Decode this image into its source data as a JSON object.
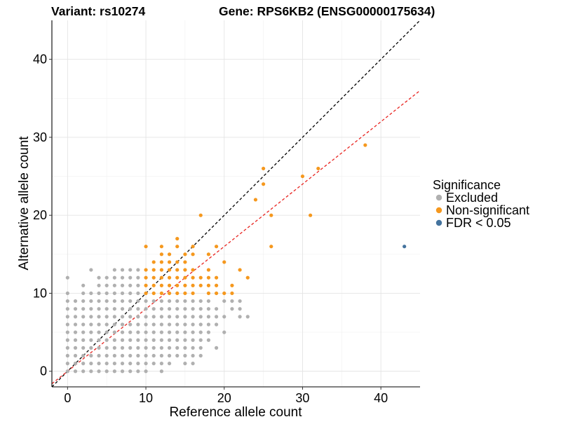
{
  "header": {
    "variant_title": "Variant: rs10274",
    "gene_title": "Gene: RPS6KB2 (ENSG00000175634)"
  },
  "chart_data": {
    "type": "scatter",
    "xlabel": "Reference allele count",
    "ylabel": "Alternative allele count",
    "xlim": [
      -2,
      45
    ],
    "ylim": [
      -2,
      45
    ],
    "x_ticks": [
      0,
      10,
      20,
      30,
      40
    ],
    "y_ticks": [
      0,
      10,
      20,
      30,
      40
    ],
    "grid": true,
    "legend": {
      "title": "Significance",
      "placement": "right",
      "entries": [
        {
          "label": "Excluded",
          "color": "#b0b0b0"
        },
        {
          "label": "Non-significant",
          "color": "#f5981e"
        },
        {
          "label": "FDR < 0.05",
          "color": "#44739e"
        }
      ]
    },
    "reference_lines": [
      {
        "slope": 1.0,
        "intercept": 0,
        "color": "#000000",
        "style": "dashed"
      },
      {
        "slope": 0.8,
        "intercept": 0,
        "color": "#e8231f",
        "style": "dashed"
      }
    ],
    "series": [
      {
        "name": "Excluded",
        "color": "#b0b0b0",
        "points": [
          [
            0,
            0
          ],
          [
            0,
            1
          ],
          [
            0,
            2
          ],
          [
            0,
            3
          ],
          [
            0,
            4
          ],
          [
            0,
            5
          ],
          [
            0,
            6
          ],
          [
            0,
            7
          ],
          [
            0,
            8
          ],
          [
            0,
            9
          ],
          [
            0,
            10
          ],
          [
            0,
            12
          ],
          [
            1,
            0
          ],
          [
            1,
            1
          ],
          [
            1,
            2
          ],
          [
            1,
            3
          ],
          [
            1,
            4
          ],
          [
            1,
            5
          ],
          [
            1,
            6
          ],
          [
            1,
            7
          ],
          [
            1,
            8
          ],
          [
            1,
            9
          ],
          [
            2,
            0
          ],
          [
            2,
            1
          ],
          [
            2,
            2
          ],
          [
            2,
            3
          ],
          [
            2,
            4
          ],
          [
            2,
            5
          ],
          [
            2,
            6
          ],
          [
            2,
            7
          ],
          [
            2,
            8
          ],
          [
            2,
            9
          ],
          [
            2,
            10
          ],
          [
            2,
            11
          ],
          [
            3,
            0
          ],
          [
            3,
            1
          ],
          [
            3,
            2
          ],
          [
            3,
            3
          ],
          [
            3,
            4
          ],
          [
            3,
            5
          ],
          [
            3,
            6
          ],
          [
            3,
            7
          ],
          [
            3,
            8
          ],
          [
            3,
            9
          ],
          [
            3,
            10
          ],
          [
            3,
            13
          ],
          [
            4,
            0
          ],
          [
            4,
            1
          ],
          [
            4,
            2
          ],
          [
            4,
            3
          ],
          [
            4,
            4
          ],
          [
            4,
            5
          ],
          [
            4,
            6
          ],
          [
            4,
            7
          ],
          [
            4,
            8
          ],
          [
            4,
            9
          ],
          [
            4,
            10
          ],
          [
            4,
            11
          ],
          [
            4,
            12
          ],
          [
            5,
            0
          ],
          [
            5,
            1
          ],
          [
            5,
            2
          ],
          [
            5,
            3
          ],
          [
            5,
            4
          ],
          [
            5,
            5
          ],
          [
            5,
            6
          ],
          [
            5,
            7
          ],
          [
            5,
            8
          ],
          [
            5,
            9
          ],
          [
            5,
            10
          ],
          [
            5,
            11
          ],
          [
            5,
            12
          ],
          [
            6,
            0
          ],
          [
            6,
            1
          ],
          [
            6,
            2
          ],
          [
            6,
            3
          ],
          [
            6,
            4
          ],
          [
            6,
            5
          ],
          [
            6,
            6
          ],
          [
            6,
            7
          ],
          [
            6,
            8
          ],
          [
            6,
            9
          ],
          [
            6,
            10
          ],
          [
            6,
            11
          ],
          [
            6,
            12
          ],
          [
            6,
            13
          ],
          [
            7,
            0
          ],
          [
            7,
            1
          ],
          [
            7,
            2
          ],
          [
            7,
            3
          ],
          [
            7,
            4
          ],
          [
            7,
            5
          ],
          [
            7,
            6
          ],
          [
            7,
            7
          ],
          [
            7,
            8
          ],
          [
            7,
            9
          ],
          [
            7,
            10
          ],
          [
            7,
            11
          ],
          [
            7,
            12
          ],
          [
            7,
            13
          ],
          [
            8,
            0
          ],
          [
            8,
            1
          ],
          [
            8,
            2
          ],
          [
            8,
            3
          ],
          [
            8,
            4
          ],
          [
            8,
            5
          ],
          [
            8,
            6
          ],
          [
            8,
            7
          ],
          [
            8,
            8
          ],
          [
            8,
            9
          ],
          [
            8,
            10
          ],
          [
            8,
            11
          ],
          [
            8,
            12
          ],
          [
            8,
            13
          ],
          [
            9,
            0
          ],
          [
            9,
            1
          ],
          [
            9,
            2
          ],
          [
            9,
            3
          ],
          [
            9,
            4
          ],
          [
            9,
            5
          ],
          [
            9,
            6
          ],
          [
            9,
            7
          ],
          [
            9,
            8
          ],
          [
            9,
            9
          ],
          [
            9,
            10
          ],
          [
            9,
            11
          ],
          [
            9,
            12
          ],
          [
            9,
            13
          ],
          [
            10,
            0
          ],
          [
            10,
            1
          ],
          [
            10,
            2
          ],
          [
            10,
            3
          ],
          [
            10,
            4
          ],
          [
            10,
            5
          ],
          [
            10,
            6
          ],
          [
            10,
            7
          ],
          [
            10,
            8
          ],
          [
            10,
            9
          ],
          [
            11,
            1
          ],
          [
            11,
            2
          ],
          [
            11,
            3
          ],
          [
            11,
            4
          ],
          [
            11,
            5
          ],
          [
            11,
            6
          ],
          [
            11,
            7
          ],
          [
            11,
            8
          ],
          [
            11,
            9
          ],
          [
            12,
            0
          ],
          [
            12,
            1
          ],
          [
            12,
            2
          ],
          [
            12,
            3
          ],
          [
            12,
            4
          ],
          [
            12,
            5
          ],
          [
            12,
            6
          ],
          [
            12,
            7
          ],
          [
            12,
            8
          ],
          [
            12,
            9
          ],
          [
            13,
            1
          ],
          [
            13,
            2
          ],
          [
            13,
            3
          ],
          [
            13,
            4
          ],
          [
            13,
            5
          ],
          [
            13,
            6
          ],
          [
            13,
            7
          ],
          [
            13,
            8
          ],
          [
            13,
            9
          ],
          [
            14,
            2
          ],
          [
            14,
            3
          ],
          [
            14,
            4
          ],
          [
            14,
            5
          ],
          [
            14,
            6
          ],
          [
            14,
            7
          ],
          [
            14,
            8
          ],
          [
            14,
            9
          ],
          [
            15,
            1
          ],
          [
            15,
            2
          ],
          [
            15,
            3
          ],
          [
            15,
            4
          ],
          [
            15,
            5
          ],
          [
            15,
            6
          ],
          [
            15,
            7
          ],
          [
            15,
            8
          ],
          [
            15,
            9
          ],
          [
            16,
            1
          ],
          [
            16,
            2
          ],
          [
            16,
            3
          ],
          [
            16,
            4
          ],
          [
            16,
            5
          ],
          [
            16,
            6
          ],
          [
            16,
            7
          ],
          [
            16,
            8
          ],
          [
            16,
            9
          ],
          [
            17,
            2
          ],
          [
            17,
            3
          ],
          [
            17,
            4
          ],
          [
            17,
            5
          ],
          [
            17,
            6
          ],
          [
            17,
            7
          ],
          [
            17,
            8
          ],
          [
            17,
            9
          ],
          [
            18,
            4
          ],
          [
            18,
            5
          ],
          [
            18,
            6
          ],
          [
            18,
            7
          ],
          [
            18,
            8
          ],
          [
            18,
            9
          ],
          [
            19,
            3
          ],
          [
            19,
            6
          ],
          [
            19,
            7
          ],
          [
            19,
            8
          ],
          [
            20,
            5
          ],
          [
            20,
            7
          ],
          [
            20,
            9
          ],
          [
            21,
            8
          ],
          [
            21,
            9
          ],
          [
            22,
            7
          ],
          [
            22,
            8
          ],
          [
            22,
            9
          ],
          [
            23,
            7
          ]
        ]
      },
      {
        "name": "Non-significant",
        "color": "#f5981e",
        "points": [
          [
            10,
            10
          ],
          [
            10,
            11
          ],
          [
            10,
            12
          ],
          [
            10,
            13
          ],
          [
            10,
            16
          ],
          [
            11,
            10
          ],
          [
            11,
            11
          ],
          [
            11,
            12
          ],
          [
            11,
            13
          ],
          [
            11,
            14
          ],
          [
            12,
            10
          ],
          [
            12,
            11
          ],
          [
            12,
            12
          ],
          [
            12,
            13
          ],
          [
            12,
            14
          ],
          [
            12,
            15
          ],
          [
            12,
            16
          ],
          [
            13,
            10
          ],
          [
            13,
            11
          ],
          [
            13,
            12
          ],
          [
            13,
            13
          ],
          [
            13,
            14
          ],
          [
            13,
            15
          ],
          [
            14,
            10
          ],
          [
            14,
            11
          ],
          [
            14,
            12
          ],
          [
            14,
            13
          ],
          [
            14,
            14
          ],
          [
            14,
            16
          ],
          [
            14,
            17
          ],
          [
            15,
            10
          ],
          [
            15,
            11
          ],
          [
            15,
            12
          ],
          [
            15,
            13
          ],
          [
            15,
            14
          ],
          [
            15,
            15
          ],
          [
            16,
            10
          ],
          [
            16,
            11
          ],
          [
            16,
            12
          ],
          [
            16,
            13
          ],
          [
            16,
            15
          ],
          [
            16,
            16
          ],
          [
            17,
            11
          ],
          [
            17,
            12
          ],
          [
            17,
            20
          ],
          [
            18,
            10
          ],
          [
            18,
            11
          ],
          [
            18,
            12
          ],
          [
            18,
            13
          ],
          [
            18,
            15
          ],
          [
            19,
            10
          ],
          [
            19,
            11
          ],
          [
            19,
            12
          ],
          [
            19,
            16
          ],
          [
            20,
            10
          ],
          [
            20,
            14
          ],
          [
            21,
            10
          ],
          [
            21,
            11
          ],
          [
            22,
            13
          ],
          [
            23,
            12
          ],
          [
            24,
            22
          ],
          [
            25,
            24
          ],
          [
            25,
            26
          ],
          [
            26,
            16
          ],
          [
            26,
            20
          ],
          [
            30,
            25
          ],
          [
            31,
            20
          ],
          [
            32,
            26
          ],
          [
            38,
            29
          ]
        ]
      },
      {
        "name": "FDR < 0.05",
        "color": "#44739e",
        "points": [
          [
            43,
            16
          ]
        ]
      }
    ]
  }
}
